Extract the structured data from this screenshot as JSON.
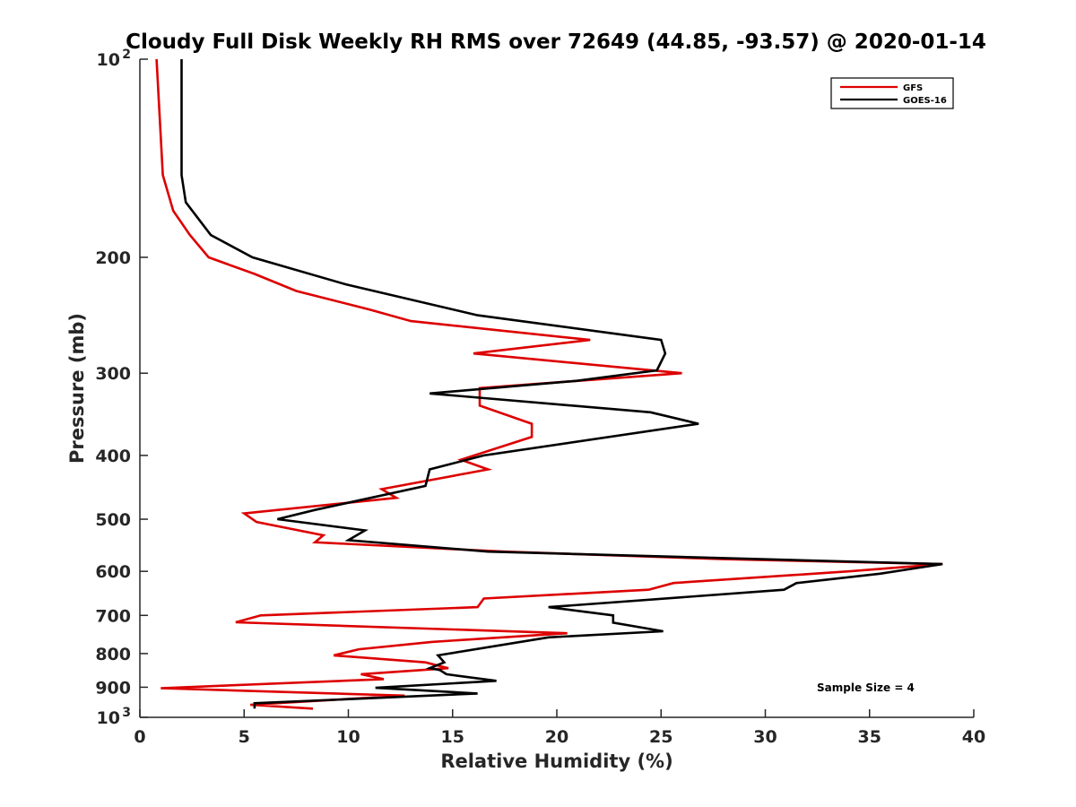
{
  "chart_data": {
    "type": "line",
    "title": "Cloudy Full Disk Weekly RH RMS over 72649 (44.85, -93.57) @ 2020-01-14",
    "xlabel": "Relative Humidity (%)",
    "ylabel": "Pressure (mb)",
    "xlim": [
      0,
      40
    ],
    "ylim": [
      100,
      1000
    ],
    "yscale": "log",
    "y_reversed": true,
    "x_ticks": [
      "0",
      "5",
      "10",
      "15",
      "20",
      "25",
      "30",
      "35",
      "40"
    ],
    "y_ticks": [
      {
        "value": 100,
        "label": "10",
        "sup": "2"
      },
      {
        "value": 200,
        "label": "200",
        "sup": ""
      },
      {
        "value": 300,
        "label": "300",
        "sup": ""
      },
      {
        "value": 400,
        "label": "400",
        "sup": ""
      },
      {
        "value": 500,
        "label": "500",
        "sup": ""
      },
      {
        "value": 600,
        "label": "600",
        "sup": ""
      },
      {
        "value": 700,
        "label": "700",
        "sup": ""
      },
      {
        "value": 800,
        "label": "800",
        "sup": ""
      },
      {
        "value": 900,
        "label": "900",
        "sup": ""
      },
      {
        "value": 1000,
        "label": "10",
        "sup": "3"
      }
    ],
    "grid": false,
    "legend_position": "top-right",
    "annotation": "Sample Size = 4",
    "series": [
      {
        "name": "GFS",
        "color": "#dd0000",
        "points": [
          [
            0.8,
            100
          ],
          [
            1.1,
            150
          ],
          [
            1.6,
            170
          ],
          [
            2.4,
            185
          ],
          [
            3.3,
            200
          ],
          [
            5.5,
            212
          ],
          [
            7.5,
            225
          ],
          [
            11,
            240
          ],
          [
            13,
            250
          ],
          [
            21.6,
            267
          ],
          [
            16,
            280
          ],
          [
            26,
            300
          ],
          [
            16.3,
            316
          ],
          [
            16.3,
            336
          ],
          [
            18.8,
            358
          ],
          [
            18.8,
            375
          ],
          [
            15.4,
            406
          ],
          [
            16.7,
            420
          ],
          [
            11.6,
            450
          ],
          [
            12.3,
            464
          ],
          [
            5,
            490
          ],
          [
            5.6,
            505
          ],
          [
            8.8,
            529
          ],
          [
            8.4,
            542
          ],
          [
            17.5,
            560
          ],
          [
            28,
            575
          ],
          [
            38.5,
            585
          ],
          [
            34,
            600
          ],
          [
            25.6,
            625
          ],
          [
            24.4,
            640
          ],
          [
            16.5,
            660
          ],
          [
            16.2,
            680
          ],
          [
            5.8,
            700
          ],
          [
            4.6,
            717
          ],
          [
            20.5,
            745
          ],
          [
            14,
            768
          ],
          [
            10.5,
            788
          ],
          [
            9.3,
            805
          ],
          [
            13.7,
            825
          ],
          [
            14.8,
            842
          ],
          [
            10.6,
            860
          ],
          [
            11.7,
            875
          ],
          [
            1.0,
            903
          ],
          [
            12.7,
            927
          ],
          [
            5.3,
            957
          ],
          [
            8.3,
            970
          ]
        ]
      },
      {
        "name": "GOES-16",
        "color": "#000000",
        "points": [
          [
            2.0,
            100
          ],
          [
            2.0,
            150
          ],
          [
            2.2,
            165
          ],
          [
            3.4,
            185
          ],
          [
            5.4,
            200
          ],
          [
            9.9,
            220
          ],
          [
            16.2,
            245
          ],
          [
            25,
            267
          ],
          [
            25.2,
            280
          ],
          [
            24.8,
            297
          ],
          [
            21,
            308
          ],
          [
            13.9,
            322
          ],
          [
            24.5,
            344
          ],
          [
            26.8,
            358
          ],
          [
            16.5,
            400
          ],
          [
            13.9,
            420
          ],
          [
            13.7,
            445
          ],
          [
            8.4,
            484
          ],
          [
            6.6,
            500
          ],
          [
            10.8,
            520
          ],
          [
            10,
            538
          ],
          [
            16.7,
            560
          ],
          [
            38.5,
            585
          ],
          [
            35.5,
            605
          ],
          [
            31.5,
            625
          ],
          [
            30.9,
            640
          ],
          [
            19.6,
            680
          ],
          [
            22.7,
            700
          ],
          [
            22.7,
            718
          ],
          [
            25.1,
            740
          ],
          [
            19.6,
            756
          ],
          [
            14.3,
            805
          ],
          [
            14.6,
            825
          ],
          [
            13.9,
            842
          ],
          [
            14.4,
            848
          ],
          [
            14.7,
            860
          ],
          [
            17.1,
            880
          ],
          [
            11.3,
            902
          ],
          [
            16.2,
            920
          ],
          [
            5.5,
            952
          ],
          [
            5.5,
            970
          ]
        ]
      }
    ]
  }
}
